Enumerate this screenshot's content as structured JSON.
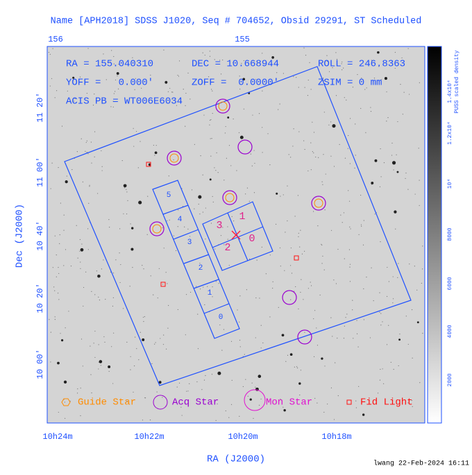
{
  "header": {
    "title": "Name [APH2018] SDSS J1020, Seq # 704652, Obsid 29291, ST Scheduled"
  },
  "axes": {
    "top_ticks": [
      "156",
      "155"
    ],
    "left_ticks": [
      "11 20'",
      "11 00'",
      "10 40'",
      "10 20'",
      "10 00'"
    ],
    "bottom_ticks": [
      "10h24m",
      "10h22m",
      "10h20m",
      "10h18m"
    ],
    "x_label": "RA (J2000)",
    "y_label": "Dec (J2000)"
  },
  "info": [
    [
      "RA = 155.040310",
      "DEC = 10.668944",
      "ROLL = 246.8363"
    ],
    [
      "YOFF =   0.000'",
      "ZOFF =  0.0000'",
      "ZSIM = 0 mm"
    ],
    [
      "ACIS PB = WT006E6034"
    ]
  ],
  "chips": {
    "acis_s": [
      "5",
      "4",
      "3",
      "2",
      "1",
      "0"
    ],
    "acis_i": [
      "3",
      "1",
      "2",
      "0"
    ]
  },
  "legend": [
    "Guide Star",
    "Acq Star",
    "Mon Star",
    "Fid Light"
  ],
  "colorbar": {
    "ticks": [
      "2000",
      "4000",
      "6000",
      "8000",
      "10⁴",
      "1.2x10⁴",
      "1.4x10⁴"
    ],
    "label": "PUSS scaled density"
  },
  "footer": "lwang 22-Feb-2024 16:11"
}
